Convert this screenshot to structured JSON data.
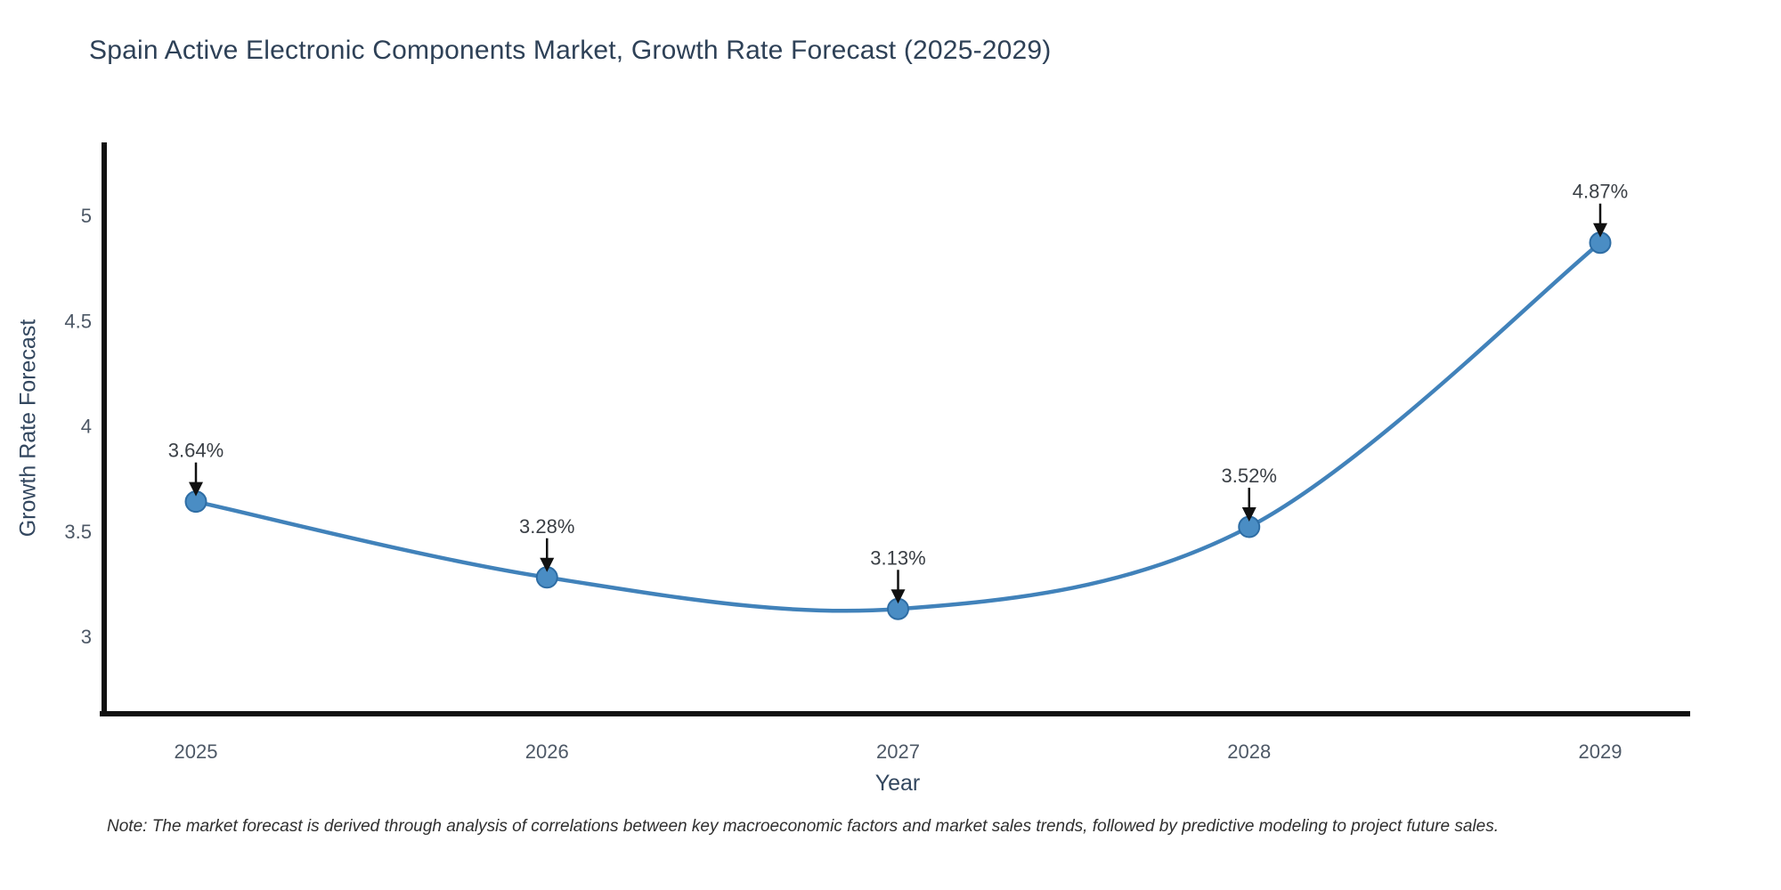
{
  "title": "Spain Active Electronic Components Market, Growth Rate Forecast (2025-2029)",
  "note": "Note: The market forecast is derived through analysis of correlations between key macroeconomic factors and market sales trends, followed by predictive modeling to project future sales.",
  "chart_data": {
    "type": "line",
    "title": "Spain Active Electronic Components Market, Growth Rate Forecast (2025-2029)",
    "xlabel": "Year",
    "ylabel": "Growth Rate Forecast",
    "categories": [
      "2025",
      "2026",
      "2027",
      "2028",
      "2029"
    ],
    "values": [
      3.64,
      3.28,
      3.13,
      3.52,
      4.87
    ],
    "point_labels": [
      "3.64%",
      "3.28%",
      "3.13%",
      "3.52%",
      "4.87%"
    ],
    "yticks": [
      3,
      3.5,
      4,
      4.5,
      5
    ],
    "ylim": [
      2.63,
      5.35
    ],
    "line_shape": "spline",
    "grid": false,
    "legend": "none",
    "colors": {
      "line": "#4182ba",
      "marker_fill": "#4a8dc4",
      "marker_edge": "#2e6da4",
      "axis": "#111111",
      "annotation": "#111111",
      "tick_text": "#4d5866",
      "label_text": "#3a3f45"
    }
  }
}
